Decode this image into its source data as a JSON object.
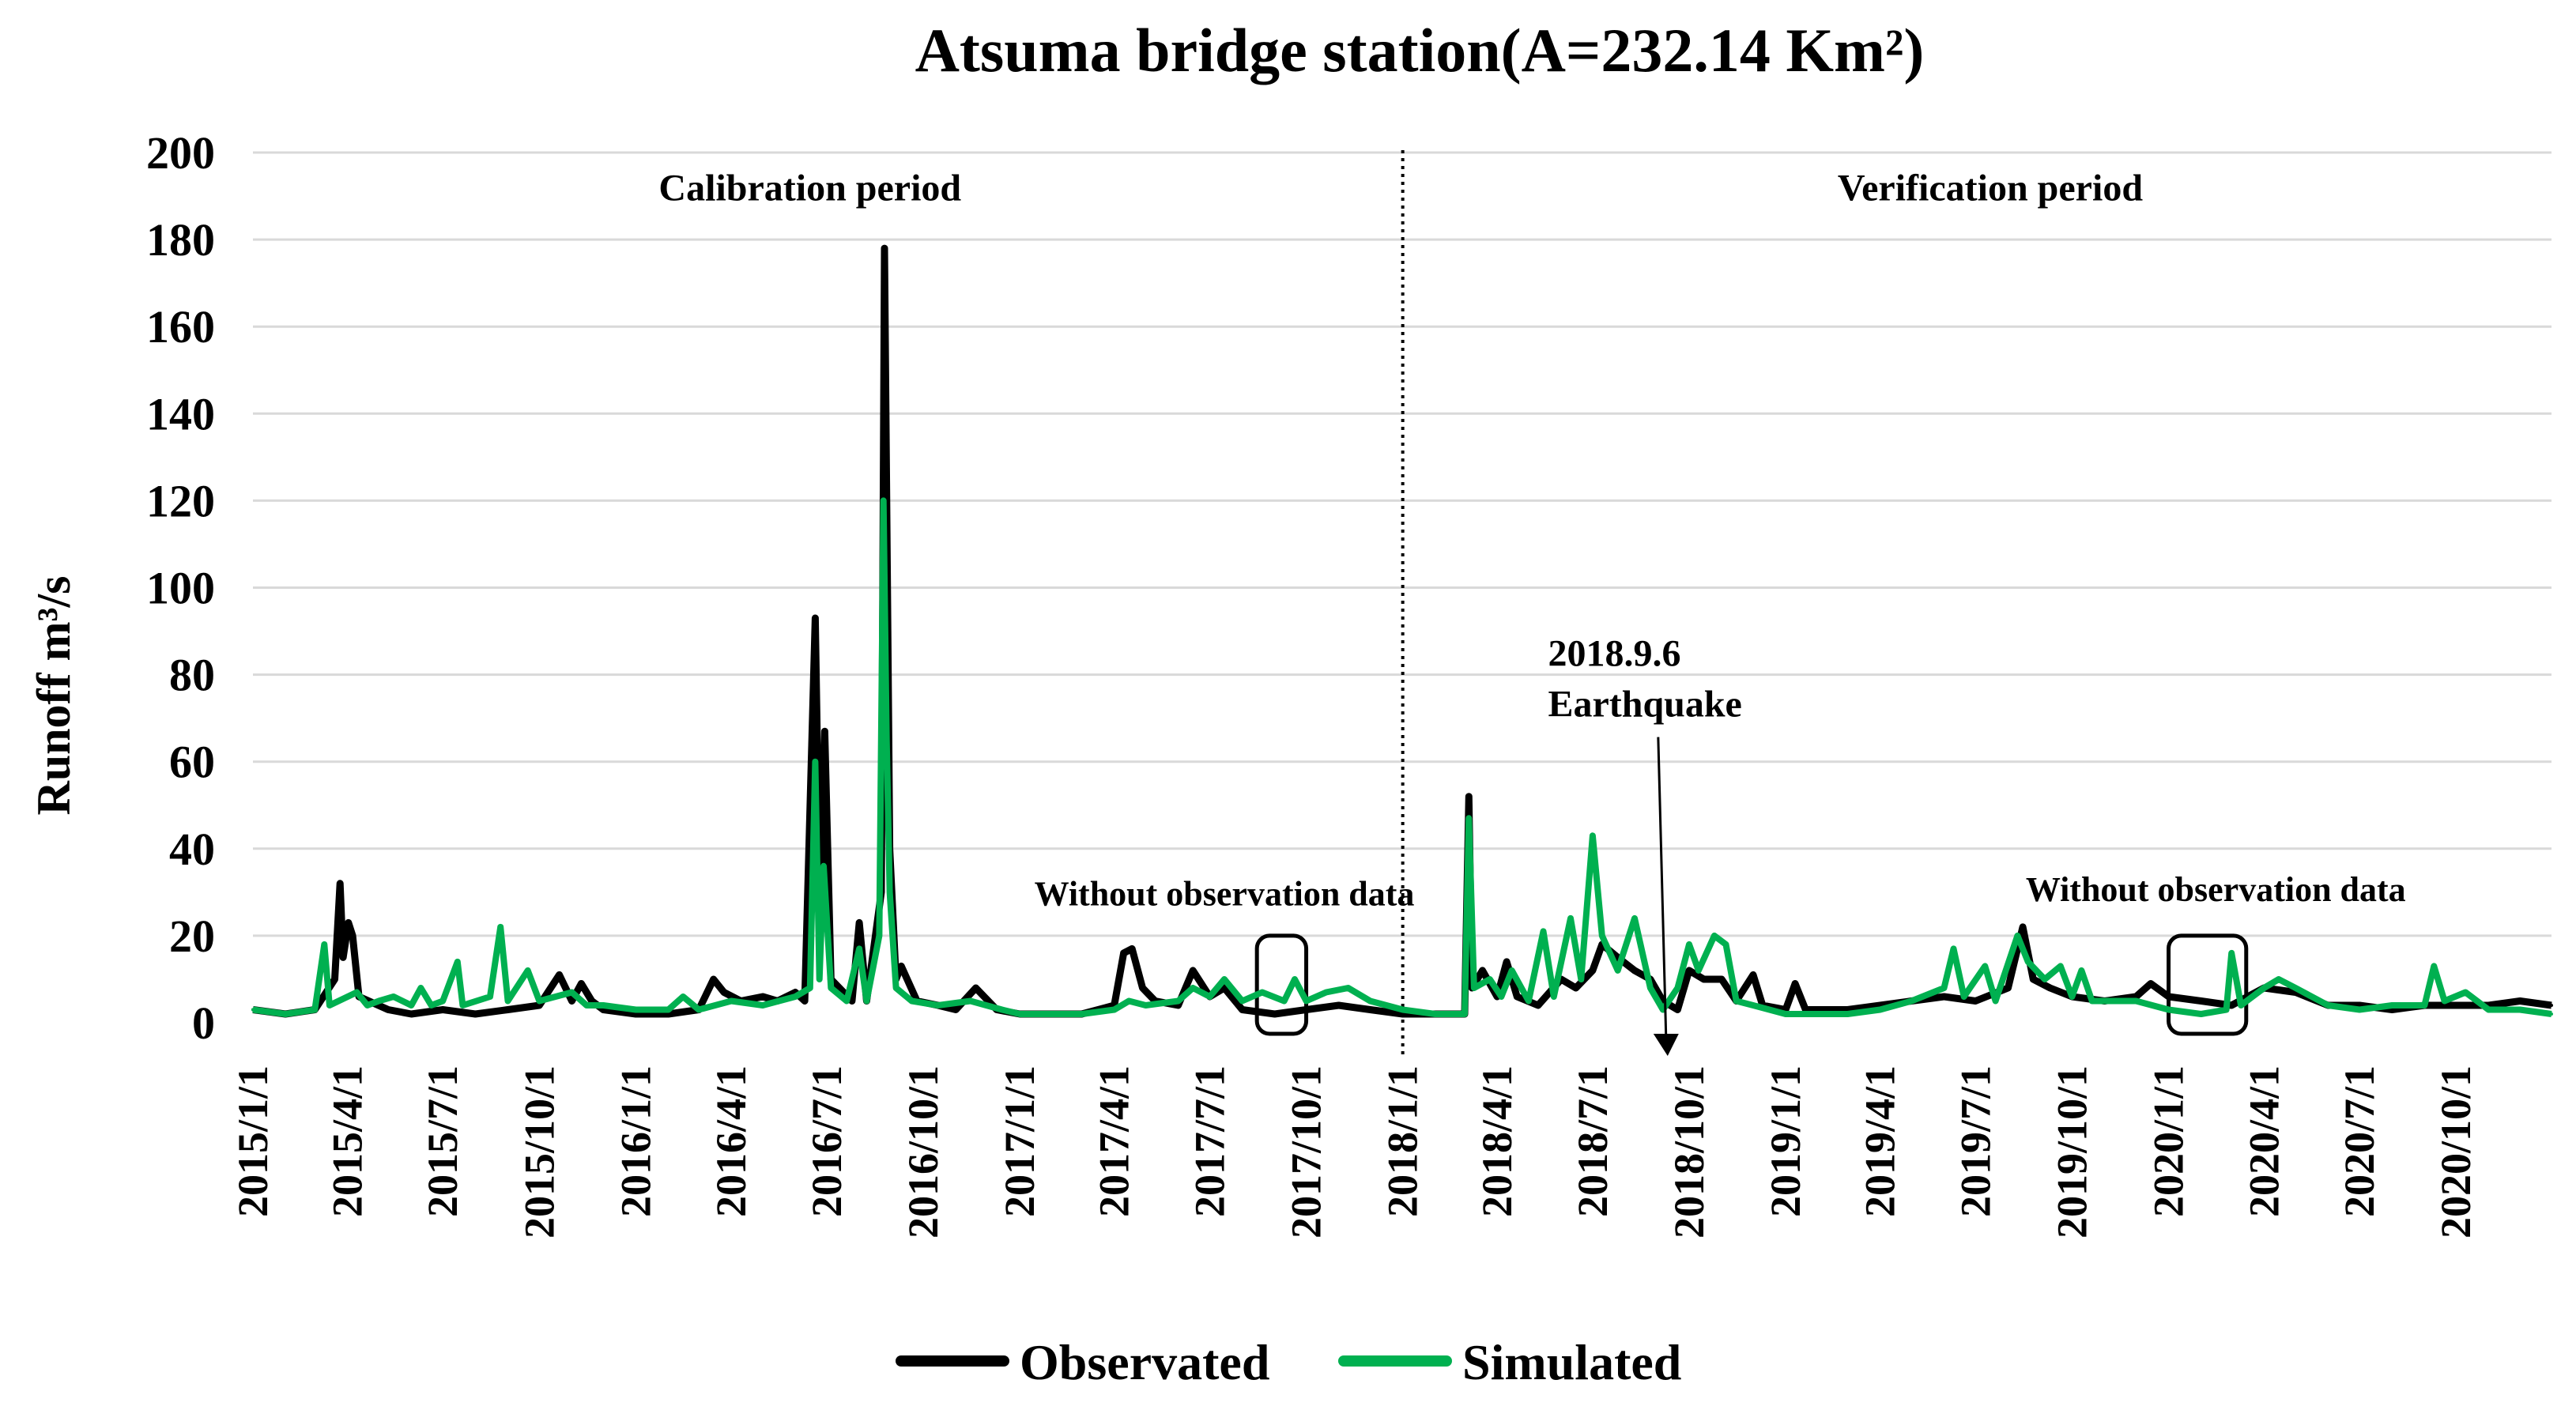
{
  "chart_data": {
    "type": "line",
    "title": "Atsuma bridge station(A=232.14 Km²)",
    "ylabel": "Runoff m³/s",
    "xlabel": "",
    "ylim": [
      0,
      200
    ],
    "yticks": [
      0,
      20,
      40,
      60,
      80,
      100,
      120,
      140,
      160,
      180,
      200
    ],
    "x_range": [
      "2015-01-01",
      "2020-12-31"
    ],
    "xtick_labels": [
      "2015/1/1",
      "2015/4/1",
      "2015/7/1",
      "2015/10/1",
      "2016/1/1",
      "2016/4/1",
      "2016/7/1",
      "2016/10/1",
      "2017/1/1",
      "2017/4/1",
      "2017/7/1",
      "2017/10/1",
      "2018/1/1",
      "2018/4/1",
      "2018/7/1",
      "2018/10/1",
      "2019/1/1",
      "2019/4/1",
      "2019/7/1",
      "2019/10/1",
      "2020/1/1",
      "2020/4/1",
      "2020/7/1",
      "2020/10/1"
    ],
    "grid": true,
    "legend_position": "bottom",
    "series": [
      {
        "name": "Observated",
        "color": "#000000",
        "points": [
          [
            "2015-01-01",
            3
          ],
          [
            "2015-02-01",
            2
          ],
          [
            "2015-03-01",
            3
          ],
          [
            "2015-03-20",
            10
          ],
          [
            "2015-03-25",
            32
          ],
          [
            "2015-03-28",
            15
          ],
          [
            "2015-04-02",
            23
          ],
          [
            "2015-04-06",
            20
          ],
          [
            "2015-04-12",
            6
          ],
          [
            "2015-05-10",
            3
          ],
          [
            "2015-06-01",
            2
          ],
          [
            "2015-07-01",
            3
          ],
          [
            "2015-08-01",
            2
          ],
          [
            "2015-09-01",
            3
          ],
          [
            "2015-10-01",
            4
          ],
          [
            "2015-10-20",
            11
          ],
          [
            "2015-11-01",
            5
          ],
          [
            "2015-11-10",
            9
          ],
          [
            "2015-11-20",
            5
          ],
          [
            "2015-12-01",
            3
          ],
          [
            "2016-01-01",
            2
          ],
          [
            "2016-02-01",
            2
          ],
          [
            "2016-03-01",
            3
          ],
          [
            "2016-03-15",
            10
          ],
          [
            "2016-03-25",
            7
          ],
          [
            "2016-04-10",
            5
          ],
          [
            "2016-05-01",
            6
          ],
          [
            "2016-05-15",
            5
          ],
          [
            "2016-06-01",
            7
          ],
          [
            "2016-06-10",
            5
          ],
          [
            "2016-06-20",
            93
          ],
          [
            "2016-06-25",
            20
          ],
          [
            "2016-06-29",
            67
          ],
          [
            "2016-07-05",
            10
          ],
          [
            "2016-07-25",
            5
          ],
          [
            "2016-08-01",
            23
          ],
          [
            "2016-08-08",
            5
          ],
          [
            "2016-08-22",
            30
          ],
          [
            "2016-08-25",
            178
          ],
          [
            "2016-08-30",
            40
          ],
          [
            "2016-09-05",
            10
          ],
          [
            "2016-09-10",
            13
          ],
          [
            "2016-09-25",
            5
          ],
          [
            "2016-10-15",
            4
          ],
          [
            "2016-11-01",
            3
          ],
          [
            "2016-11-20",
            8
          ],
          [
            "2016-12-10",
            3
          ],
          [
            "2017-01-01",
            2
          ],
          [
            "2017-02-01",
            2
          ],
          [
            "2017-03-01",
            2
          ],
          [
            "2017-04-01",
            4
          ],
          [
            "2017-04-10",
            16
          ],
          [
            "2017-04-18",
            17
          ],
          [
            "2017-04-28",
            8
          ],
          [
            "2017-05-10",
            5
          ],
          [
            "2017-06-01",
            4
          ],
          [
            "2017-06-15",
            12
          ],
          [
            "2017-07-01",
            6
          ],
          [
            "2017-07-15",
            8
          ],
          [
            "2017-08-01",
            3
          ],
          [
            "2017-09-01",
            2
          ],
          [
            "2017-10-01",
            3
          ],
          [
            "2017-11-01",
            4
          ],
          [
            "2017-12-01",
            3
          ],
          [
            "2018-01-01",
            2
          ],
          [
            "2018-02-01",
            2
          ],
          [
            "2018-03-01",
            2
          ],
          [
            "2018-03-05",
            52
          ],
          [
            "2018-03-08",
            8
          ],
          [
            "2018-03-18",
            12
          ],
          [
            "2018-04-01",
            6
          ],
          [
            "2018-04-10",
            14
          ],
          [
            "2018-04-20",
            6
          ],
          [
            "2018-05-10",
            4
          ],
          [
            "2018-06-01",
            10
          ],
          [
            "2018-06-15",
            8
          ],
          [
            "2018-07-01",
            12
          ],
          [
            "2018-07-10",
            18
          ],
          [
            "2018-07-25",
            15
          ],
          [
            "2018-08-10",
            12
          ],
          [
            "2018-08-25",
            10
          ],
          [
            "2018-09-06",
            5
          ],
          [
            "2018-09-20",
            3
          ],
          [
            "2018-10-01",
            12
          ],
          [
            "2018-10-15",
            10
          ],
          [
            "2018-11-01",
            10
          ],
          [
            "2018-11-15",
            5
          ],
          [
            "2018-12-01",
            11
          ],
          [
            "2018-12-10",
            4
          ],
          [
            "2019-01-01",
            3
          ],
          [
            "2019-01-10",
            9
          ],
          [
            "2019-01-20",
            3
          ],
          [
            "2019-03-01",
            3
          ],
          [
            "2019-04-01",
            4
          ],
          [
            "2019-05-01",
            5
          ],
          [
            "2019-06-01",
            6
          ],
          [
            "2019-07-01",
            5
          ],
          [
            "2019-08-01",
            8
          ],
          [
            "2019-08-15",
            22
          ],
          [
            "2019-08-25",
            10
          ],
          [
            "2019-09-10",
            8
          ],
          [
            "2019-10-01",
            6
          ],
          [
            "2019-11-01",
            5
          ],
          [
            "2019-12-01",
            6
          ],
          [
            "2019-12-15",
            9
          ],
          [
            "2020-01-01",
            6
          ],
          [
            "2020-02-01",
            5
          ],
          [
            "2020-03-01",
            4
          ],
          [
            "2020-04-01",
            8
          ],
          [
            "2020-05-01",
            7
          ],
          [
            "2020-06-01",
            4
          ],
          [
            "2020-07-01",
            4
          ],
          [
            "2020-08-01",
            3
          ],
          [
            "2020-09-01",
            4
          ],
          [
            "2020-10-01",
            4
          ],
          [
            "2020-11-01",
            4
          ],
          [
            "2020-12-01",
            5
          ],
          [
            "2020-12-31",
            4
          ]
        ]
      },
      {
        "name": "Simulated",
        "color": "#00b050",
        "points": [
          [
            "2015-01-01",
            3
          ],
          [
            "2015-02-01",
            2
          ],
          [
            "2015-03-01",
            3
          ],
          [
            "2015-03-10",
            18
          ],
          [
            "2015-03-15",
            4
          ],
          [
            "2015-04-10",
            7
          ],
          [
            "2015-04-20",
            4
          ],
          [
            "2015-05-01",
            5
          ],
          [
            "2015-05-15",
            6
          ],
          [
            "2015-06-01",
            4
          ],
          [
            "2015-06-10",
            8
          ],
          [
            "2015-06-20",
            4
          ],
          [
            "2015-07-01",
            5
          ],
          [
            "2015-07-15",
            14
          ],
          [
            "2015-07-20",
            4
          ],
          [
            "2015-08-15",
            6
          ],
          [
            "2015-08-25",
            22
          ],
          [
            "2015-09-01",
            5
          ],
          [
            "2015-09-20",
            12
          ],
          [
            "2015-10-01",
            5
          ],
          [
            "2015-11-01",
            7
          ],
          [
            "2015-11-15",
            4
          ],
          [
            "2015-12-01",
            4
          ],
          [
            "2016-01-01",
            3
          ],
          [
            "2016-02-01",
            3
          ],
          [
            "2016-02-15",
            6
          ],
          [
            "2016-03-01",
            3
          ],
          [
            "2016-04-01",
            5
          ],
          [
            "2016-05-01",
            4
          ],
          [
            "2016-06-01",
            6
          ],
          [
            "2016-06-15",
            8
          ],
          [
            "2016-06-20",
            60
          ],
          [
            "2016-06-24",
            10
          ],
          [
            "2016-06-28",
            36
          ],
          [
            "2016-07-05",
            8
          ],
          [
            "2016-07-20",
            5
          ],
          [
            "2016-08-01",
            17
          ],
          [
            "2016-08-08",
            5
          ],
          [
            "2016-08-20",
            20
          ],
          [
            "2016-08-24",
            120
          ],
          [
            "2016-08-27",
            65
          ],
          [
            "2016-08-30",
            30
          ],
          [
            "2016-09-05",
            8
          ],
          [
            "2016-09-20",
            5
          ],
          [
            "2016-10-15",
            4
          ],
          [
            "2016-11-15",
            5
          ],
          [
            "2016-12-15",
            3
          ],
          [
            "2017-01-01",
            2
          ],
          [
            "2017-02-01",
            2
          ],
          [
            "2017-03-01",
            2
          ],
          [
            "2017-04-01",
            3
          ],
          [
            "2017-04-15",
            5
          ],
          [
            "2017-05-01",
            4
          ],
          [
            "2017-06-01",
            5
          ],
          [
            "2017-06-15",
            8
          ],
          [
            "2017-07-01",
            6
          ],
          [
            "2017-07-15",
            10
          ],
          [
            "2017-08-01",
            5
          ],
          [
            "2017-08-20",
            7
          ],
          [
            "2017-09-10",
            5
          ],
          [
            "2017-09-20",
            10
          ],
          [
            "2017-10-01",
            5
          ],
          [
            "2017-10-20",
            7
          ],
          [
            "2017-11-10",
            8
          ],
          [
            "2017-12-01",
            5
          ],
          [
            "2018-01-01",
            3
          ],
          [
            "2018-02-01",
            2
          ],
          [
            "2018-03-01",
            2
          ],
          [
            "2018-03-05",
            47
          ],
          [
            "2018-03-10",
            8
          ],
          [
            "2018-03-25",
            10
          ],
          [
            "2018-04-05",
            6
          ],
          [
            "2018-04-15",
            12
          ],
          [
            "2018-05-01",
            5
          ],
          [
            "2018-05-15",
            21
          ],
          [
            "2018-05-25",
            6
          ],
          [
            "2018-06-10",
            24
          ],
          [
            "2018-06-20",
            10
          ],
          [
            "2018-07-01",
            43
          ],
          [
            "2018-07-10",
            20
          ],
          [
            "2018-07-25",
            12
          ],
          [
            "2018-08-10",
            24
          ],
          [
            "2018-08-25",
            8
          ],
          [
            "2018-09-06",
            3
          ],
          [
            "2018-09-20",
            8
          ],
          [
            "2018-10-01",
            18
          ],
          [
            "2018-10-10",
            12
          ],
          [
            "2018-10-25",
            20
          ],
          [
            "2018-11-05",
            18
          ],
          [
            "2018-11-15",
            5
          ],
          [
            "2018-12-01",
            4
          ],
          [
            "2019-01-01",
            2
          ],
          [
            "2019-02-01",
            2
          ],
          [
            "2019-03-01",
            2
          ],
          [
            "2019-04-01",
            3
          ],
          [
            "2019-05-01",
            5
          ],
          [
            "2019-06-01",
            8
          ],
          [
            "2019-06-10",
            17
          ],
          [
            "2019-06-20",
            6
          ],
          [
            "2019-07-10",
            13
          ],
          [
            "2019-07-20",
            5
          ],
          [
            "2019-08-10",
            20
          ],
          [
            "2019-08-20",
            14
          ],
          [
            "2019-09-05",
            10
          ],
          [
            "2019-09-20",
            13
          ],
          [
            "2019-10-01",
            6
          ],
          [
            "2019-10-10",
            12
          ],
          [
            "2019-10-20",
            5
          ],
          [
            "2019-12-01",
            5
          ],
          [
            "2020-01-01",
            3
          ],
          [
            "2020-02-01",
            2
          ],
          [
            "2020-02-25",
            3
          ],
          [
            "2020-03-01",
            16
          ],
          [
            "2020-03-10",
            4
          ],
          [
            "2020-04-01",
            8
          ],
          [
            "2020-04-15",
            10
          ],
          [
            "2020-05-01",
            8
          ],
          [
            "2020-06-01",
            4
          ],
          [
            "2020-07-01",
            3
          ],
          [
            "2020-08-01",
            4
          ],
          [
            "2020-09-01",
            4
          ],
          [
            "2020-09-10",
            13
          ],
          [
            "2020-09-20",
            5
          ],
          [
            "2020-10-10",
            7
          ],
          [
            "2020-11-01",
            3
          ],
          [
            "2020-12-01",
            3
          ],
          [
            "2020-12-31",
            2
          ]
        ]
      }
    ],
    "annotations": [
      {
        "text": "Calibration period",
        "x": "2016-06-15",
        "y": 189
      },
      {
        "text": "Verification period",
        "x": "2019-07-15",
        "y": 189
      },
      {
        "text": "Without observation data",
        "x": "2017-07-15",
        "y": 27
      },
      {
        "text": "Without observation data",
        "x": "2020-02-15",
        "y": 28
      },
      {
        "text": "2018.9.6",
        "x": "2018-07-15",
        "y": 82,
        "text2": "Earthquake"
      }
    ],
    "period_divider_date": "2018-01-01",
    "earthquake_date": "2018-09-06",
    "no_data_boxes": [
      {
        "start": "2017-08-15",
        "end": "2017-10-01",
        "ymin": 0,
        "ymax": 20
      },
      {
        "start": "2020-01-01",
        "end": "2020-03-15",
        "ymin": 0,
        "ymax": 20
      }
    ]
  }
}
